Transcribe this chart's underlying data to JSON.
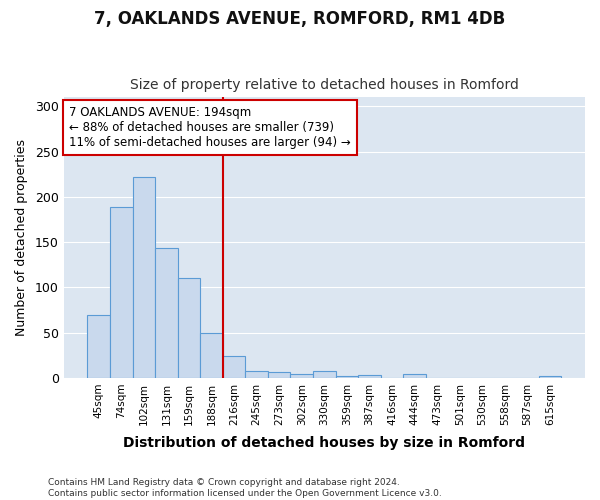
{
  "title": "7, OAKLANDS AVENUE, ROMFORD, RM1 4DB",
  "subtitle": "Size of property relative to detached houses in Romford",
  "xlabel": "Distribution of detached houses by size in Romford",
  "ylabel": "Number of detached properties",
  "footer_line1": "Contains HM Land Registry data © Crown copyright and database right 2024.",
  "footer_line2": "Contains public sector information licensed under the Open Government Licence v3.0.",
  "annotation_line1": "7 OAKLANDS AVENUE: 194sqm",
  "annotation_line2": "← 88% of detached houses are smaller (739)",
  "annotation_line3": "11% of semi-detached houses are larger (94) →",
  "bar_color": "#c9d9ed",
  "bar_edge_color": "#5b9bd5",
  "vline_color": "#cc0000",
  "background_color": "#ffffff",
  "chart_bg_color": "#dce6f1",
  "grid_color": "#ffffff",
  "categories": [
    "45sqm",
    "74sqm",
    "102sqm",
    "131sqm",
    "159sqm",
    "188sqm",
    "216sqm",
    "245sqm",
    "273sqm",
    "302sqm",
    "330sqm",
    "359sqm",
    "387sqm",
    "416sqm",
    "444sqm",
    "473sqm",
    "501sqm",
    "530sqm",
    "558sqm",
    "587sqm",
    "615sqm"
  ],
  "values": [
    70,
    189,
    222,
    144,
    110,
    50,
    24,
    8,
    6,
    4,
    8,
    2,
    3,
    0,
    4,
    0,
    0,
    0,
    0,
    0,
    2
  ],
  "ylim": [
    0,
    310
  ],
  "yticks": [
    0,
    50,
    100,
    150,
    200,
    250,
    300
  ],
  "vline_pos": 5.5
}
